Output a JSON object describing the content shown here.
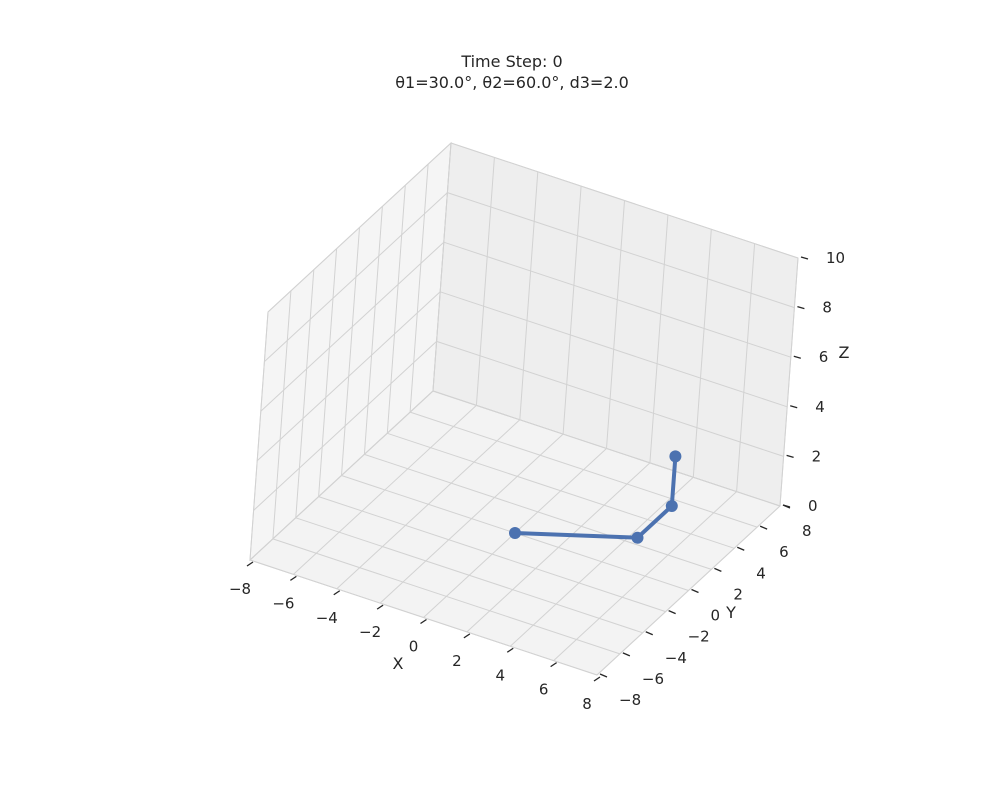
{
  "chart_data": {
    "type": "line3d",
    "title_line1": "Time Step: 0",
    "title_line2": "θ1=30.0°, θ2=60.0°, d3=2.0",
    "xlabel": "X",
    "ylabel": "Y",
    "zlabel": "Z",
    "xlim": [
      -8,
      8
    ],
    "ylim": [
      -8,
      8
    ],
    "zlim": [
      0,
      10
    ],
    "grid": true,
    "x_ticks": [
      "−8",
      "−6",
      "−4",
      "−2",
      "0",
      "2",
      "4",
      "6",
      "8"
    ],
    "y_ticks": [
      "−8",
      "−6",
      "−4",
      "−2",
      "0",
      "2",
      "4",
      "6",
      "8"
    ],
    "z_ticks": [
      "0",
      "2",
      "4",
      "6",
      "8",
      "10"
    ],
    "series": [
      {
        "points": [
          {
            "x": 0,
            "y": 0,
            "z": 0
          },
          {
            "x": 4.33,
            "y": 2.5,
            "z": 0
          },
          {
            "x": 4.33,
            "y": 5.5,
            "z": 0
          },
          {
            "x": 4.33,
            "y": 5.5,
            "z": 2
          }
        ]
      }
    ],
    "colors": {
      "line": "#4c72b0",
      "pane_left": "#f5f5f5",
      "pane_back": "#eeeeee",
      "pane_floor": "#f3f3f3",
      "grid": "#d2d2d2"
    }
  }
}
